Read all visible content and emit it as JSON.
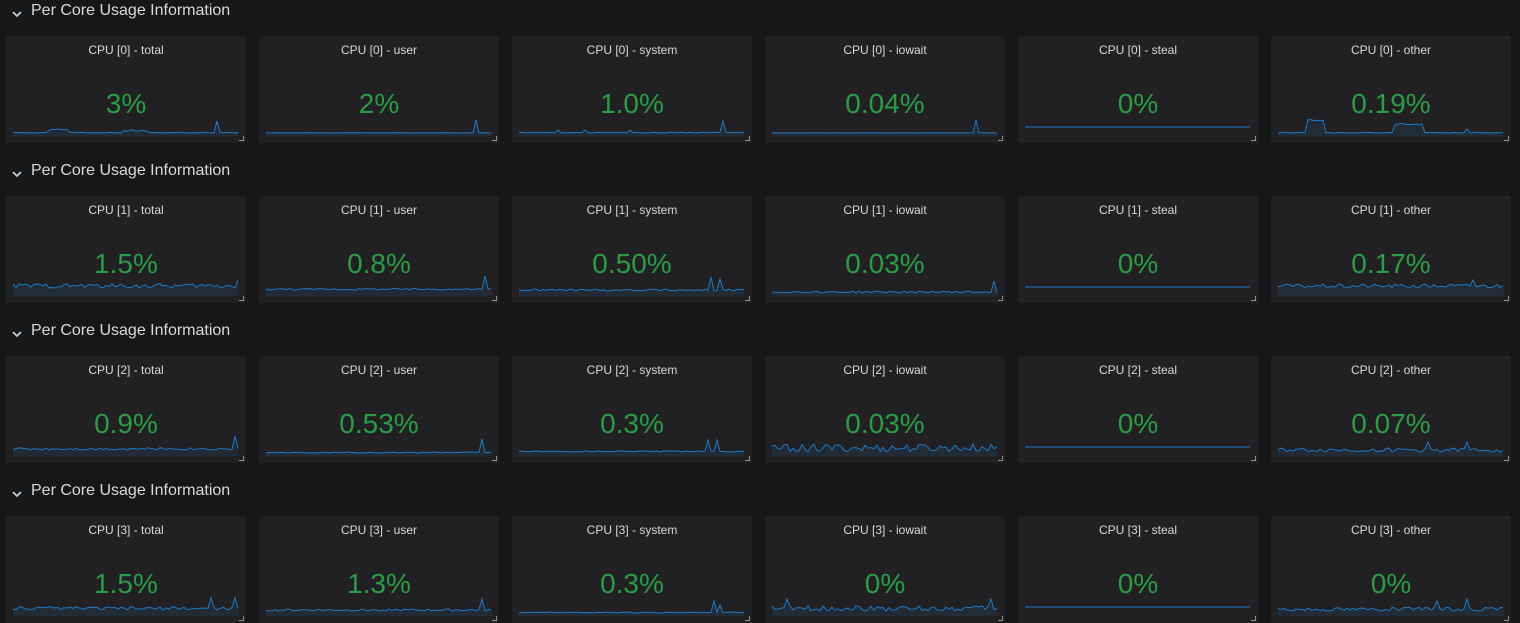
{
  "accent": "#299c46",
  "spark_color": "#1f78c1",
  "rows": [
    {
      "title": "Per Core Usage Information",
      "panels": [
        {
          "title": "CPU [0] - total",
          "value": "3%"
        },
        {
          "title": "CPU [0] - user",
          "value": "2%"
        },
        {
          "title": "CPU [0] - system",
          "value": "1.0%"
        },
        {
          "title": "CPU [0] - iowait",
          "value": "0.04%"
        },
        {
          "title": "CPU [0] - steal",
          "value": "0%"
        },
        {
          "title": "CPU [0] - other",
          "value": "0.19%"
        }
      ]
    },
    {
      "title": "Per Core Usage Information",
      "panels": [
        {
          "title": "CPU [1] - total",
          "value": "1.5%"
        },
        {
          "title": "CPU [1] - user",
          "value": "0.8%"
        },
        {
          "title": "CPU [1] - system",
          "value": "0.50%"
        },
        {
          "title": "CPU [1] - iowait",
          "value": "0.03%"
        },
        {
          "title": "CPU [1] - steal",
          "value": "0%"
        },
        {
          "title": "CPU [1] - other",
          "value": "0.17%"
        }
      ]
    },
    {
      "title": "Per Core Usage Information",
      "panels": [
        {
          "title": "CPU [2] - total",
          "value": "0.9%"
        },
        {
          "title": "CPU [2] - user",
          "value": "0.53%"
        },
        {
          "title": "CPU [2] - system",
          "value": "0.3%"
        },
        {
          "title": "CPU [2] - iowait",
          "value": "0.03%"
        },
        {
          "title": "CPU [2] - steal",
          "value": "0%"
        },
        {
          "title": "CPU [2] - other",
          "value": "0.07%"
        }
      ]
    },
    {
      "title": "Per Core Usage Information",
      "panels": [
        {
          "title": "CPU [3] - total",
          "value": "1.5%"
        },
        {
          "title": "CPU [3] - user",
          "value": "1.3%"
        },
        {
          "title": "CPU [3] - system",
          "value": "0.3%"
        },
        {
          "title": "CPU [3] - iowait",
          "value": "0%"
        },
        {
          "title": "CPU [3] - steal",
          "value": "0%"
        },
        {
          "title": "CPU [3] - other",
          "value": "0%"
        }
      ]
    }
  ]
}
